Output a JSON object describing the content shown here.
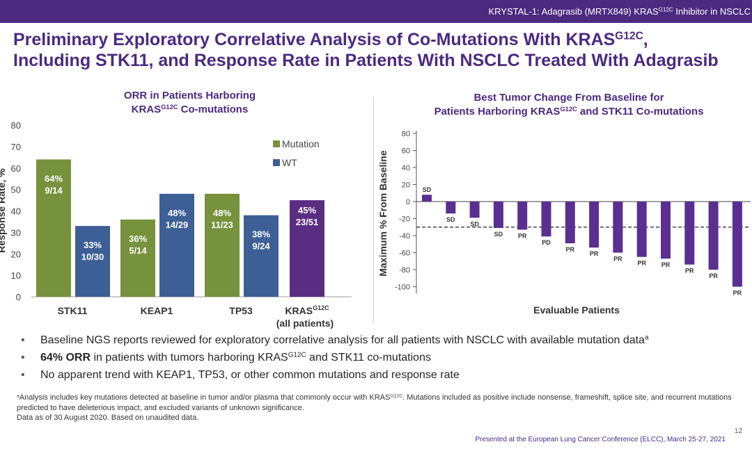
{
  "header": {
    "banner_pre": "KRYSTAL-1: Adagrasib (MRTX849) KRAS",
    "banner_sup": "G12C",
    "banner_post": " Inhibitor in NSCLC"
  },
  "title": {
    "line1_pre": "Preliminary Exploratory Correlative Analysis of Co-Mutations With KRAS",
    "line1_sup": "G12C",
    "line1_post": ",",
    "line2": "Including STK11, and Response Rate in Patients With NSCLC Treated With Adagrasib"
  },
  "colors": {
    "brand": "#4b2a80",
    "mutation": "#76923c",
    "wt": "#3d5f96",
    "all": "#5a2d82",
    "tumor_bar": "#5b2f91"
  },
  "chart_data": [
    {
      "type": "bar",
      "title_line1": "ORR in Patients Harboring",
      "title_line2_pre": "KRAS",
      "title_line2_sup": "G12C",
      "title_line2_post": " Co-mutations",
      "ylabel": "Response Rate, %",
      "ylim": [
        0,
        80
      ],
      "yticks": [
        "0",
        "10",
        "20",
        "30",
        "40",
        "50",
        "60",
        "70",
        "80"
      ],
      "grid": false,
      "legend": "top-right",
      "legend_items": [
        "Mutation",
        "WT"
      ],
      "categories": [
        "STK11",
        "KEAP1",
        "TP53"
      ],
      "last_category_pre": "KRAS",
      "last_category_sup": "G12C",
      "last_category_line2": "(all patients)",
      "series": [
        {
          "name": "Mutation",
          "values": [
            64,
            36,
            48
          ],
          "pct_labels": [
            "64%",
            "36%",
            "48%"
          ],
          "frac_labels": [
            "9/14",
            "5/14",
            "11/23"
          ]
        },
        {
          "name": "WT",
          "values": [
            33,
            48,
            38
          ],
          "pct_labels": [
            "33%",
            "48%",
            "38%"
          ],
          "frac_labels": [
            "10/30",
            "14/29",
            "9/24"
          ]
        }
      ],
      "all_patients": {
        "value": 45,
        "pct_label": "45%",
        "frac_label": "23/51"
      }
    },
    {
      "type": "bar",
      "title_line1": "Best Tumor Change From Baseline for",
      "title_line2_pre": "Patients Harboring KRAS",
      "title_line2_sup": "G12C",
      "title_line2_post": " and STK11 Co-mutations",
      "ylabel": "Maximum % From Baseline",
      "xlabel": "Evaluable Patients",
      "ylim": [
        -100,
        80
      ],
      "yticks": [
        "-100",
        "-80",
        "-60",
        "-40",
        "-20",
        "0",
        "20",
        "40",
        "60",
        "80"
      ],
      "reference_line": -30,
      "values": [
        8,
        -14,
        -19,
        -31,
        -33,
        -41,
        -49,
        -54,
        -60,
        -65,
        -67,
        -74,
        -80,
        -100
      ],
      "labels": [
        "SD",
        "SD",
        "SD",
        "SD",
        "PR",
        "PD",
        "PR",
        "PR",
        "PR",
        "PR",
        "PR",
        "PR",
        "PR",
        "PR"
      ]
    }
  ],
  "bullets": [
    {
      "bold": "",
      "text": "Baseline NGS reports reviewed for exploratory correlative analysis for all patients with NSCLC with available mutation data",
      "sup": "a",
      "post": ""
    },
    {
      "bold": "64% ORR",
      "text": " in patients with tumors harboring KRAS",
      "sup": "G12C",
      "post": " and STK11 co-mutations"
    },
    {
      "bold": "",
      "text": "No apparent trend with KEAP1, TP53, or other common mutations and response rate",
      "sup": "",
      "post": ""
    }
  ],
  "footnote": {
    "marker": "a",
    "line1_pre": "Analysis includes key mutations detected at baseline in tumor and/or plasma that commonly occur with KRAS",
    "line1_sup": "G12C",
    "line1_post": ". Mutations included as positive include nonsense, frameshift, splice site, and recurrent mutations predicted to have deleterious impact, and excluded variants of unknown significance.",
    "line2": "Data as of 30 August 2020. Based on unaudited data."
  },
  "page_number": "12",
  "presented": "Presented at the European Lung Cancer Conference (ELCC), March 25-27, 2021"
}
